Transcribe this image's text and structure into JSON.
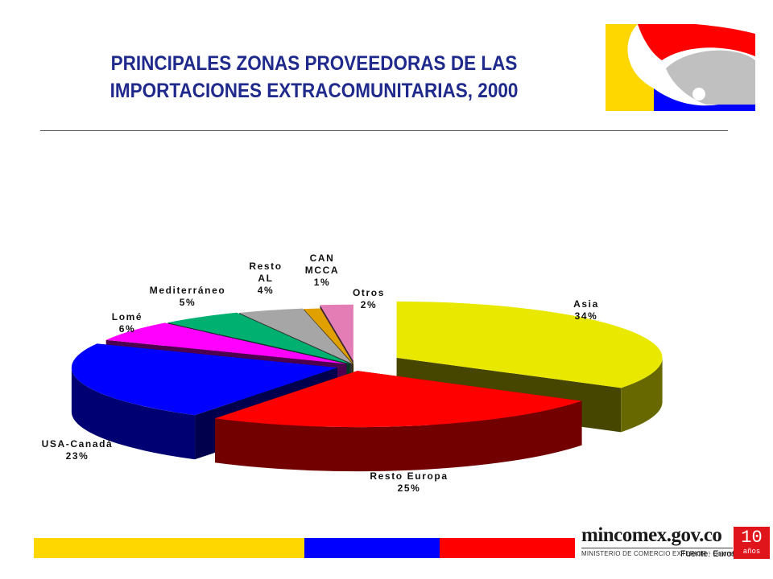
{
  "title": {
    "line1": "PRINCIPALES ZONAS PROVEEDORAS DE LAS",
    "line2": "IMPORTACIONES EXTRACOMUNITARIAS, 2000"
  },
  "chart_data": {
    "type": "pie",
    "title": "PRINCIPALES ZONAS PROVEEDORAS DE LAS IMPORTACIONES EXTRACOMUNITARIAS, 2000",
    "slices": [
      {
        "label_lines": [
          "Asia"
        ],
        "value": 34,
        "value_label": "34%",
        "color": "#e8e800"
      },
      {
        "label_lines": [
          "Resto Europa"
        ],
        "value": 25,
        "value_label": "25%",
        "color": "#ff0000"
      },
      {
        "label_lines": [
          "USA-Canadá"
        ],
        "value": 23,
        "value_label": "23%",
        "color": "#0000ff"
      },
      {
        "label_lines": [
          "Lomé"
        ],
        "value": 6,
        "value_label": "6%",
        "color": "#ff00ff"
      },
      {
        "label_lines": [
          "Mediterráneo"
        ],
        "value": 5,
        "value_label": "5%",
        "color": "#00b070"
      },
      {
        "label_lines": [
          "Resto",
          "AL"
        ],
        "value": 4,
        "value_label": "4%",
        "color": "#a6a6a6"
      },
      {
        "label_lines": [
          "CAN",
          "MCCA"
        ],
        "value": 1,
        "value_label": "1%",
        "color": "#e0a000"
      },
      {
        "label_lines": [
          "Otros"
        ],
        "value": 2,
        "value_label": "2%",
        "color": "#e47cb6"
      }
    ]
  },
  "footer": {
    "brand": "mincomex.gov.co",
    "ministry": "MINISTERIO DE COMERCIO EXTERIOR - Colombia",
    "source": "Fuente: Eurostat",
    "badge_number": "10",
    "badge_text": "años",
    "stripe_colors": [
      "#ffd700",
      "#0000ff",
      "#ff0000"
    ]
  },
  "logo_colors": {
    "yellow": "#ffd700",
    "red": "#ff0000",
    "blue": "#0000ff",
    "gray": "#c0c0c0"
  }
}
